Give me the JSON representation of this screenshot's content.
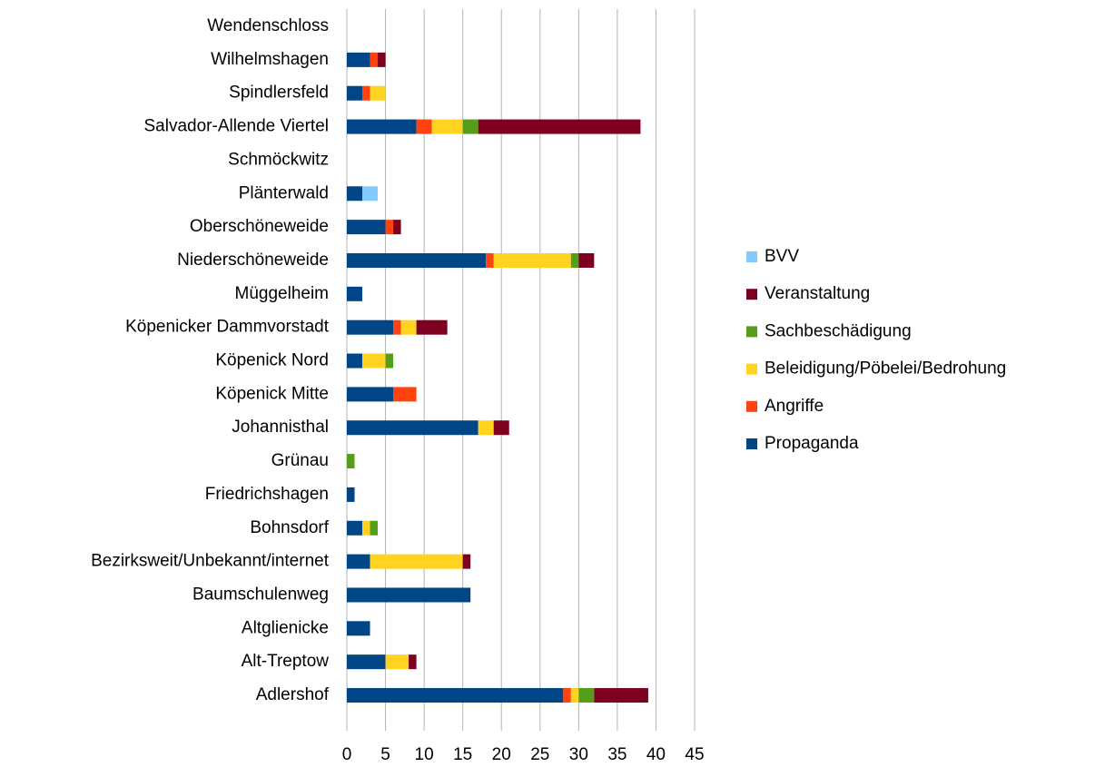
{
  "chart_data": {
    "type": "stacked-barh",
    "categories": [
      "Adlershof",
      "Alt-Treptow",
      "Altglienicke",
      "Baumschulenweg",
      "Bezirksweit/Unbekannt/internet",
      "Bohnsdorf",
      "Friedrichshagen",
      "Grünau",
      "Johannisthal",
      "Köpenick Mitte",
      "Köpenick Nord",
      "Köpenicker Dammvorstadt",
      "Müggelheim",
      "Niederschöneweide",
      "Oberschöneweide",
      "Plänterwald",
      "Schmöckwitz",
      "Salvador-Allende Viertel",
      "Spindlersfeld",
      "Wilhelmshagen",
      "Wendenschloss"
    ],
    "series": [
      {
        "name": "Propaganda",
        "color": "#004586",
        "values": [
          28,
          5,
          3,
          16,
          3,
          2,
          1,
          0,
          17,
          6,
          2,
          6,
          2,
          18,
          5,
          2,
          0,
          9,
          2,
          3,
          0
        ]
      },
      {
        "name": "Angriffe",
        "color": "#ff420e",
        "values": [
          1,
          0,
          0,
          0,
          0,
          0,
          0,
          0,
          0,
          3,
          0,
          1,
          0,
          1,
          1,
          0,
          0,
          2,
          1,
          1,
          0
        ]
      },
      {
        "name": "Beleidigung/Pöbelei/Bedrohung",
        "color": "#ffd320",
        "values": [
          1,
          3,
          0,
          0,
          12,
          1,
          0,
          0,
          2,
          0,
          3,
          2,
          0,
          10,
          0,
          0,
          0,
          4,
          2,
          0,
          0
        ]
      },
      {
        "name": "Sachbeschädigung",
        "color": "#579d1c",
        "values": [
          2,
          0,
          0,
          0,
          0,
          1,
          0,
          1,
          0,
          0,
          1,
          0,
          0,
          1,
          0,
          0,
          0,
          2,
          0,
          0,
          0
        ]
      },
      {
        "name": "Veranstaltung",
        "color": "#7e0021",
        "values": [
          7,
          1,
          0,
          0,
          1,
          0,
          0,
          0,
          2,
          0,
          0,
          4,
          0,
          2,
          1,
          0,
          0,
          21,
          0,
          1,
          0
        ]
      },
      {
        "name": "BVV",
        "color": "#83caff",
        "values": [
          0,
          0,
          0,
          0,
          0,
          0,
          0,
          0,
          0,
          0,
          0,
          0,
          0,
          0,
          0,
          2,
          0,
          0,
          0,
          0,
          0
        ]
      }
    ],
    "xlim": [
      0,
      45
    ],
    "xticks": [
      0,
      5,
      10,
      15,
      20,
      25,
      30,
      35,
      40,
      45
    ],
    "grid": true,
    "legend": "right"
  }
}
